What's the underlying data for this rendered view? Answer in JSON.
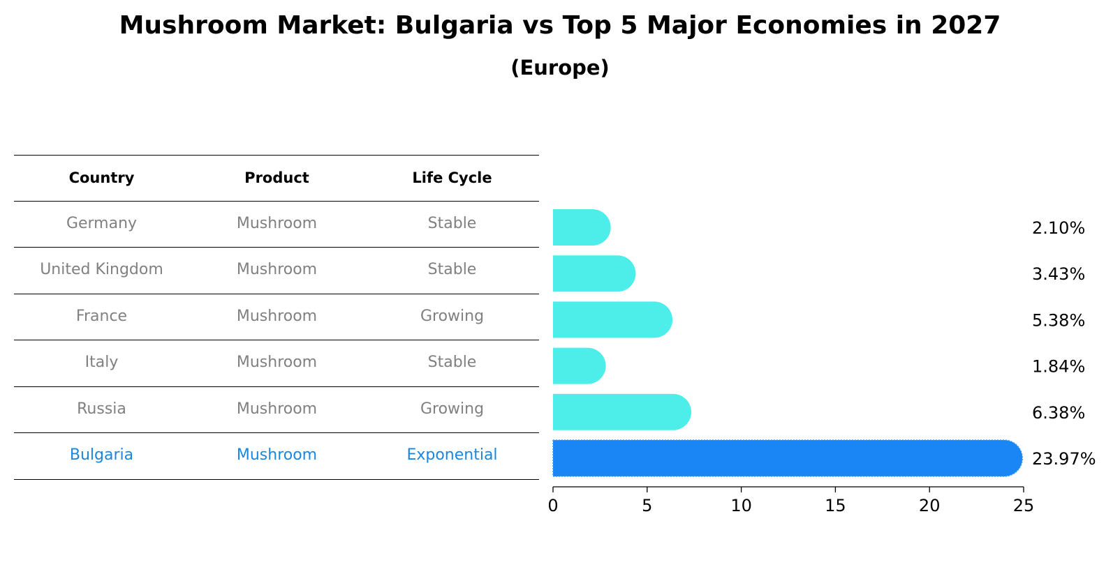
{
  "title": "Mushroom Market: Bulgaria vs Top 5 Major Economies in 2027",
  "subtitle": "(Europe)",
  "table": {
    "headers": [
      "Country",
      "Product",
      "Life Cycle"
    ],
    "rows": [
      {
        "country": "Germany",
        "product": "Mushroom",
        "life_cycle": "Stable"
      },
      {
        "country": "United Kingdom",
        "product": "Mushroom",
        "life_cycle": "Stable"
      },
      {
        "country": "France",
        "product": "Mushroom",
        "life_cycle": "Growing"
      },
      {
        "country": "Italy",
        "product": "Mushroom",
        "life_cycle": "Stable"
      },
      {
        "country": "Russia",
        "product": "Mushroom",
        "life_cycle": "Growing"
      },
      {
        "country": "Bulgaria",
        "product": "Mushroom",
        "life_cycle": "Exponential"
      }
    ]
  },
  "colors": {
    "bar": "#4deeea",
    "highlight": "#1a86f5",
    "highlight_text": "#1a86e0",
    "table_text": "#808080"
  },
  "chart_data": {
    "type": "bar",
    "orientation": "horizontal",
    "categories": [
      "Germany",
      "United Kingdom",
      "France",
      "Italy",
      "Russia",
      "Bulgaria"
    ],
    "values": [
      2.1,
      3.43,
      5.38,
      1.84,
      6.38,
      23.97
    ],
    "value_labels": [
      "2.10%",
      "3.43%",
      "5.38%",
      "1.84%",
      "6.38%",
      "23.97%"
    ],
    "highlight_index": 5,
    "xlim": [
      0,
      25
    ],
    "xticks": [
      0,
      5,
      10,
      15,
      20,
      25
    ],
    "xlabel": "",
    "ylabel": ""
  }
}
